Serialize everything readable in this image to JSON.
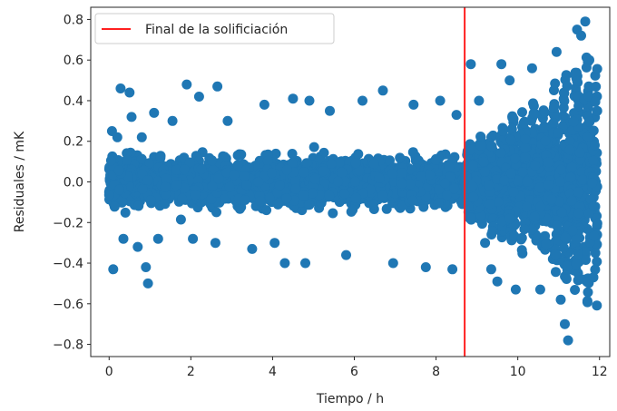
{
  "chart_data": {
    "type": "scatter",
    "title": "",
    "xlabel": "Tiempo / h",
    "ylabel": "Residuales / mK",
    "xlim": [
      -0.45,
      12.25
    ],
    "ylim": [
      -0.86,
      0.86
    ],
    "x_ticks": [
      0,
      2,
      4,
      6,
      8,
      10,
      12
    ],
    "x_tick_labels": [
      "0",
      "2",
      "4",
      "6",
      "8",
      "10",
      "12"
    ],
    "y_ticks": [
      -0.8,
      -0.6,
      -0.4,
      -0.2,
      0.0,
      0.2,
      0.4,
      0.6,
      0.8
    ],
    "y_tick_labels": [
      "−0.8",
      "−0.6",
      "−0.4",
      "−0.2",
      "0.0",
      "0.2",
      "0.4",
      "0.6",
      "0.8"
    ],
    "grid": false,
    "legend": {
      "position": "top-left",
      "entries": [
        {
          "label": "Final de la solificiación",
          "color": "#ff2020",
          "marker": "line"
        }
      ]
    },
    "vline": {
      "x": 8.7,
      "color": "#ff2020",
      "label": "Final de la solificiación"
    },
    "series": [
      {
        "color": "#1f77b4",
        "description": "dense residual scatter: stable band about ±0.25 before x≈8.7, then growing oscillations after",
        "points": [
          [
            0.07,
            0.25
          ],
          [
            0.1,
            -0.43
          ],
          [
            0.2,
            0.22
          ],
          [
            0.28,
            0.46
          ],
          [
            0.35,
            -0.28
          ],
          [
            0.5,
            0.44
          ],
          [
            0.55,
            0.32
          ],
          [
            0.7,
            -0.32
          ],
          [
            0.8,
            0.22
          ],
          [
            0.9,
            -0.42
          ],
          [
            0.95,
            -0.5
          ],
          [
            1.1,
            0.34
          ],
          [
            1.2,
            -0.28
          ],
          [
            1.55,
            0.3
          ],
          [
            1.9,
            0.48
          ],
          [
            2.05,
            -0.28
          ],
          [
            2.2,
            0.42
          ],
          [
            2.6,
            -0.3
          ],
          [
            2.65,
            0.47
          ],
          [
            2.9,
            0.3
          ],
          [
            3.5,
            -0.33
          ],
          [
            3.8,
            0.38
          ],
          [
            4.05,
            -0.3
          ],
          [
            4.3,
            -0.4
          ],
          [
            4.5,
            0.41
          ],
          [
            4.8,
            -0.4
          ],
          [
            4.9,
            0.4
          ],
          [
            5.4,
            0.35
          ],
          [
            5.8,
            -0.36
          ],
          [
            6.2,
            0.4
          ],
          [
            6.7,
            0.45
          ],
          [
            6.95,
            -0.4
          ],
          [
            7.45,
            0.38
          ],
          [
            7.75,
            -0.42
          ],
          [
            8.1,
            0.4
          ],
          [
            8.4,
            -0.43
          ],
          [
            8.5,
            0.33
          ],
          [
            8.85,
            0.58
          ],
          [
            9.05,
            0.4
          ],
          [
            9.2,
            -0.3
          ],
          [
            9.35,
            -0.43
          ],
          [
            9.5,
            -0.49
          ],
          [
            9.6,
            0.58
          ],
          [
            9.8,
            0.5
          ],
          [
            9.95,
            -0.53
          ],
          [
            10.35,
            0.56
          ],
          [
            10.55,
            -0.53
          ],
          [
            10.95,
            0.64
          ],
          [
            11.05,
            -0.58
          ],
          [
            11.15,
            -0.7
          ],
          [
            11.23,
            -0.78
          ],
          [
            11.45,
            0.75
          ],
          [
            11.55,
            0.72
          ],
          [
            11.65,
            0.79
          ],
          [
            11.75,
            0.6
          ],
          [
            11.85,
            -0.47
          ],
          [
            11.9,
            -0.35
          ]
        ]
      }
    ]
  }
}
